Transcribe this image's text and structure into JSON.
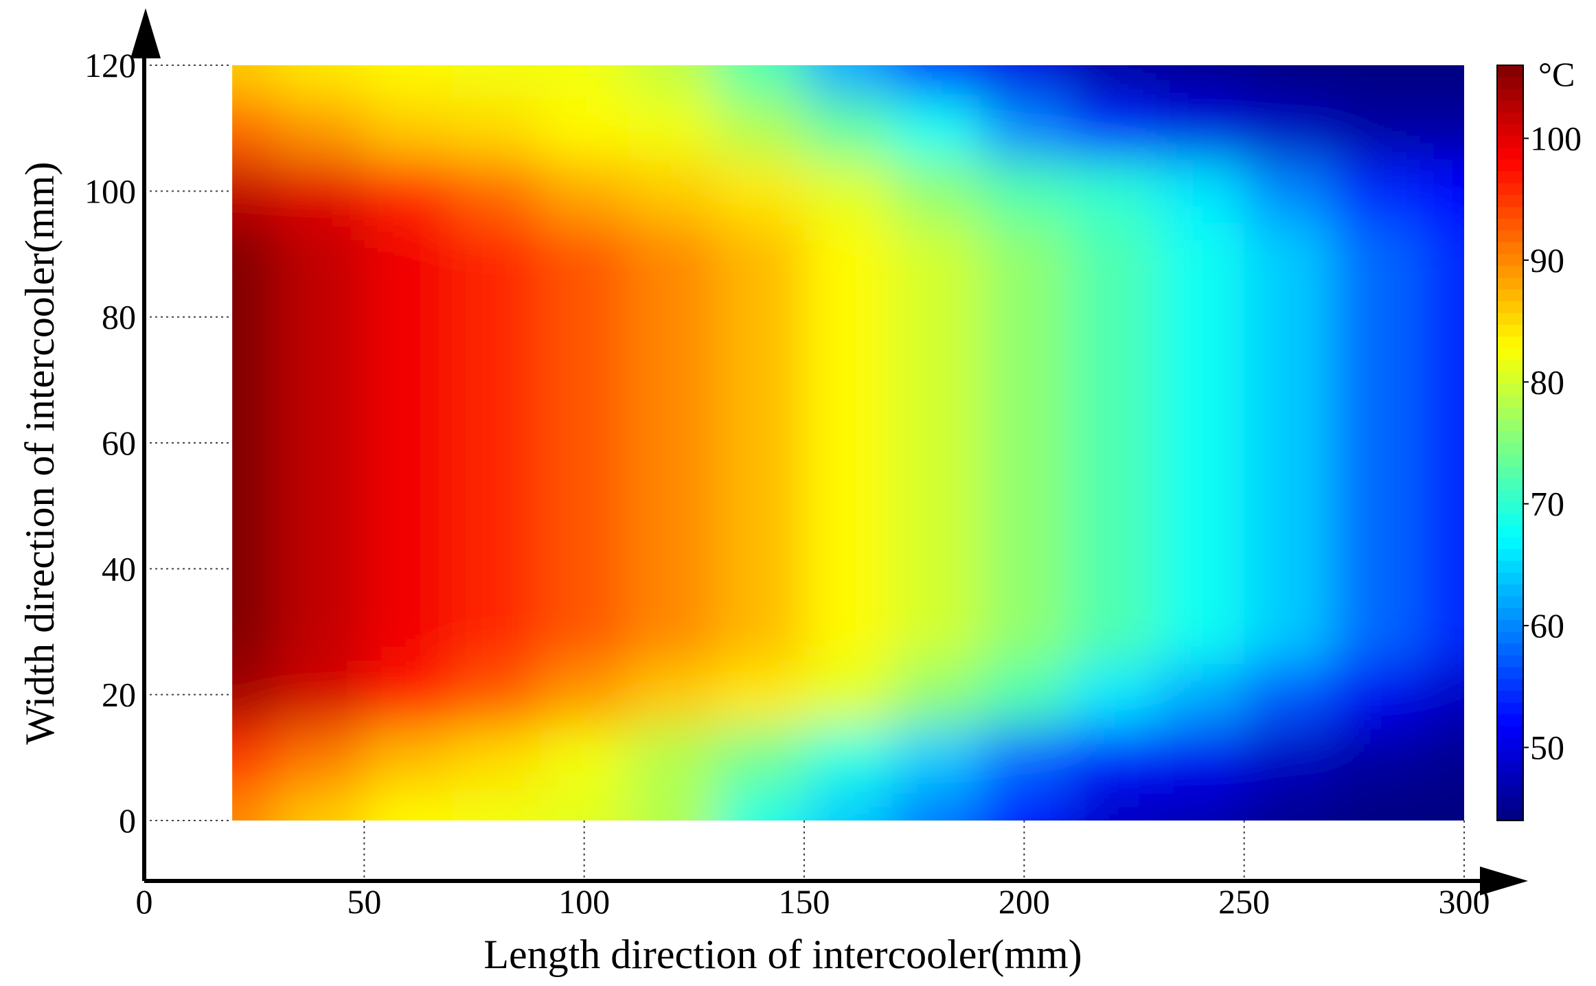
{
  "chart_data": {
    "type": "heatmap",
    "title": "",
    "xlabel": "Length direction of intercooler(mm)",
    "ylabel": "Width direction of intercooler(mm)",
    "xlim": [
      0,
      300
    ],
    "ylim": [
      -10,
      120
    ],
    "x_ticks": [
      "0",
      "50",
      "100",
      "150",
      "200",
      "250",
      "300"
    ],
    "y_ticks": [
      "0",
      "20",
      "40",
      "60",
      "80",
      "100",
      "120"
    ],
    "colorbar": {
      "unit": "°C",
      "range": [
        44,
        106
      ],
      "ticks": [
        "50",
        "60",
        "70",
        "80",
        "90",
        "100"
      ],
      "colormap": "jet"
    },
    "grid": "dotted",
    "data_extent": {
      "x": [
        20,
        300
      ],
      "y": [
        0,
        120
      ]
    },
    "x": [
      20,
      40,
      60,
      80,
      100,
      120,
      140,
      160,
      180,
      200,
      220,
      240,
      260,
      280,
      300
    ],
    "y": [
      0,
      10,
      20,
      30,
      40,
      50,
      60,
      70,
      80,
      90,
      100,
      110,
      120
    ],
    "z": [
      [
        90,
        86,
        83,
        82,
        81,
        78,
        69,
        64,
        59,
        53,
        48,
        47,
        45,
        44,
        44
      ],
      [
        95,
        91,
        87,
        85,
        82,
        78,
        74,
        69,
        64,
        58,
        53,
        51,
        48,
        46,
        45
      ],
      [
        104,
        101,
        97,
        93,
        89,
        86,
        84,
        81,
        76,
        72,
        66,
        62,
        57,
        51,
        48
      ],
      [
        106,
        102,
        99,
        96,
        93,
        90,
        87,
        83,
        80,
        76,
        72,
        68,
        64,
        58,
        54
      ],
      [
        106,
        102,
        99,
        96,
        93,
        90,
        87,
        83,
        80,
        76,
        72,
        68,
        64,
        58,
        54
      ],
      [
        106,
        102,
        99,
        96,
        93,
        90,
        87,
        83,
        80,
        76,
        72,
        68,
        64,
        58,
        54
      ],
      [
        106,
        102,
        99,
        96,
        93,
        90,
        87,
        83,
        80,
        76,
        72,
        68,
        64,
        58,
        54
      ],
      [
        106,
        102,
        99,
        96,
        93,
        90,
        87,
        83,
        80,
        76,
        72,
        68,
        64,
        58,
        54
      ],
      [
        106,
        102,
        99,
        96,
        93,
        90,
        87,
        83,
        80,
        76,
        72,
        68,
        64,
        58,
        54
      ],
      [
        106,
        102,
        99,
        96,
        93,
        90,
        87,
        83,
        80,
        76,
        72,
        68,
        64,
        58,
        54
      ],
      [
        102,
        100,
        96,
        92,
        88,
        86,
        84,
        81,
        76,
        72,
        70,
        66,
        60,
        54,
        52
      ],
      [
        92,
        89,
        86,
        85,
        83,
        82,
        78,
        73,
        68,
        60,
        54,
        50,
        48,
        46,
        46
      ],
      [
        86,
        84,
        83,
        82,
        82,
        79,
        72,
        62,
        55,
        50,
        46,
        45,
        44,
        44,
        44
      ]
    ]
  }
}
